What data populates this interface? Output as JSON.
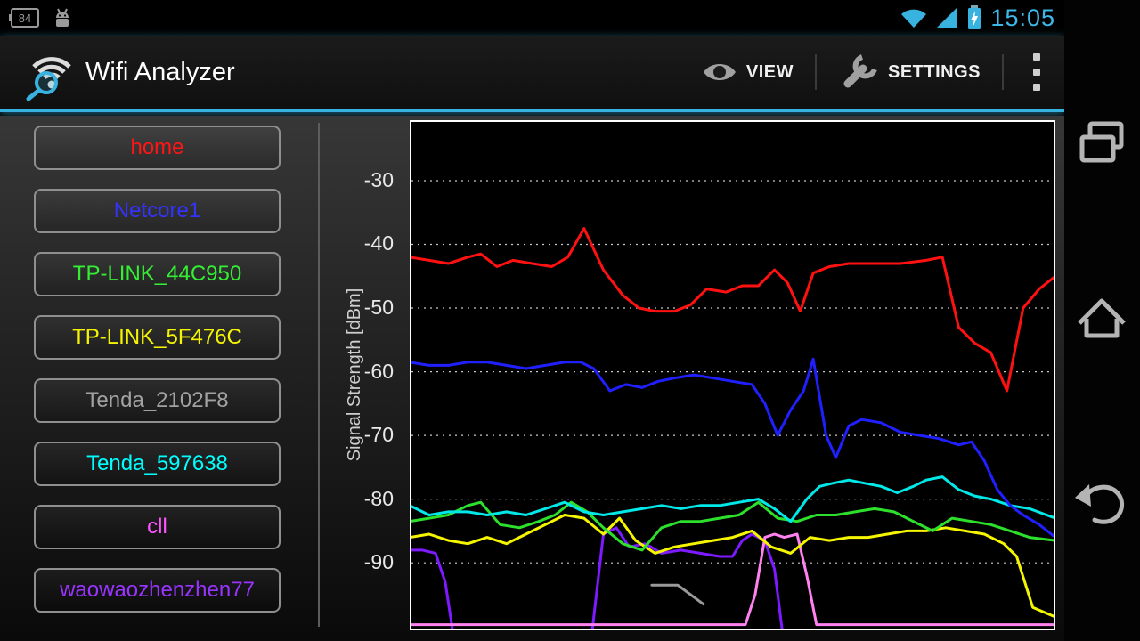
{
  "status_bar": {
    "battery_percent": "84",
    "time": "15:05",
    "icons": [
      "battery-84-icon",
      "android-debug-icon",
      "wifi-status-icon",
      "signal-strength-icon",
      "battery-charging-icon"
    ],
    "accent_color": "#38b3e0"
  },
  "action_bar": {
    "title": "Wifi Analyzer",
    "view_label": "VIEW",
    "settings_label": "SETTINGS",
    "underline_color": "#38b3e0"
  },
  "ssid_list": [
    {
      "label": "home",
      "color": "#ff1515"
    },
    {
      "label": "Netcore1",
      "color": "#3333ff"
    },
    {
      "label": "TP-LINK_44C950",
      "color": "#33ee33"
    },
    {
      "label": "TP-LINK_5F476C",
      "color": "#f5f500"
    },
    {
      "label": "Tenda_2102F8",
      "color": "#a2a2a2"
    },
    {
      "label": "Tenda_597638",
      "color": "#00ffff"
    },
    {
      "label": "cll",
      "color": "#ff55ff"
    },
    {
      "label": "waowaozhenzhen77",
      "color": "#9933ff"
    }
  ],
  "chart_data": {
    "type": "line",
    "title": "",
    "xlabel": "",
    "ylabel": "Signal Strength [dBm]",
    "ylim": [
      -100.6,
      -20.5
    ],
    "gridlines": [
      -30,
      -40,
      -50,
      -60,
      -70,
      -80,
      -90
    ],
    "grid_style": "dotted",
    "plot_background": "#000000",
    "legend_position": "left-list",
    "x_axis": "time (no labels shown)",
    "series": [
      {
        "name": "Tenda_2102F8",
        "color": "#9a9a9a",
        "points": [
          [
            0.375,
            -93.5
          ],
          [
            0.415,
            -93.5
          ],
          [
            0.455,
            -96.5
          ]
        ]
      },
      {
        "name": "waowaozhenzhen77",
        "color": "#7d1aff",
        "points": [
          [
            0,
            -88
          ],
          [
            0.02,
            -88
          ],
          [
            0.04,
            -88.5
          ],
          [
            0.055,
            -93
          ],
          [
            0.07,
            -103
          ],
          [
            0.28,
            -103
          ],
          [
            0.3,
            -85.5
          ],
          [
            0.32,
            -84.5
          ],
          [
            0.34,
            -87.5
          ],
          [
            0.365,
            -87
          ],
          [
            0.39,
            -88.5
          ],
          [
            0.42,
            -88
          ],
          [
            0.45,
            -88.5
          ],
          [
            0.48,
            -89
          ],
          [
            0.5,
            -89
          ],
          [
            0.515,
            -86.5
          ],
          [
            0.53,
            -85.5
          ],
          [
            0.55,
            -86.5
          ],
          [
            0.565,
            -91
          ],
          [
            0.58,
            -103
          ],
          [
            1,
            -103
          ]
        ]
      },
      {
        "name": "cll",
        "color": "#ff82f0",
        "points": [
          [
            0,
            -99.7
          ],
          [
            0.52,
            -99.7
          ],
          [
            0.535,
            -95
          ],
          [
            0.55,
            -86
          ],
          [
            0.565,
            -85.5
          ],
          [
            0.58,
            -86
          ],
          [
            0.6,
            -85.5
          ],
          [
            0.615,
            -92
          ],
          [
            0.63,
            -99.7
          ],
          [
            1,
            -99.7
          ]
        ]
      },
      {
        "name": "TP-LINK_5F476C",
        "color": "#f5f500",
        "points": [
          [
            0,
            -86
          ],
          [
            0.03,
            -85.5
          ],
          [
            0.06,
            -86.5
          ],
          [
            0.09,
            -87
          ],
          [
            0.12,
            -86
          ],
          [
            0.15,
            -87
          ],
          [
            0.18,
            -85.5
          ],
          [
            0.21,
            -84
          ],
          [
            0.24,
            -82.5
          ],
          [
            0.27,
            -83
          ],
          [
            0.3,
            -85.5
          ],
          [
            0.325,
            -83
          ],
          [
            0.35,
            -86.5
          ],
          [
            0.38,
            -88.5
          ],
          [
            0.41,
            -87.5
          ],
          [
            0.44,
            -87
          ],
          [
            0.47,
            -86.5
          ],
          [
            0.5,
            -86
          ],
          [
            0.53,
            -85
          ],
          [
            0.56,
            -87.5
          ],
          [
            0.59,
            -88.5
          ],
          [
            0.62,
            -86
          ],
          [
            0.65,
            -86.5
          ],
          [
            0.68,
            -86
          ],
          [
            0.71,
            -86
          ],
          [
            0.74,
            -85.5
          ],
          [
            0.77,
            -85
          ],
          [
            0.8,
            -85
          ],
          [
            0.83,
            -84.5
          ],
          [
            0.86,
            -85
          ],
          [
            0.89,
            -85.5
          ],
          [
            0.92,
            -87
          ],
          [
            0.94,
            -89
          ],
          [
            0.965,
            -97
          ],
          [
            1,
            -98.5
          ]
        ]
      },
      {
        "name": "TP-LINK_44C950",
        "color": "#2ce02c",
        "points": [
          [
            0,
            -83.5
          ],
          [
            0.03,
            -83
          ],
          [
            0.06,
            -82.5
          ],
          [
            0.09,
            -81
          ],
          [
            0.11,
            -80.5
          ],
          [
            0.14,
            -84
          ],
          [
            0.17,
            -84.5
          ],
          [
            0.2,
            -83.5
          ],
          [
            0.225,
            -82.5
          ],
          [
            0.25,
            -80.5
          ],
          [
            0.275,
            -82
          ],
          [
            0.3,
            -84.5
          ],
          [
            0.33,
            -87
          ],
          [
            0.36,
            -88
          ],
          [
            0.39,
            -84.5
          ],
          [
            0.42,
            -83.5
          ],
          [
            0.45,
            -83.5
          ],
          [
            0.48,
            -83
          ],
          [
            0.51,
            -82.5
          ],
          [
            0.54,
            -80.5
          ],
          [
            0.57,
            -83
          ],
          [
            0.6,
            -83.5
          ],
          [
            0.63,
            -82.5
          ],
          [
            0.66,
            -82.5
          ],
          [
            0.69,
            -82
          ],
          [
            0.72,
            -81.5
          ],
          [
            0.75,
            -82
          ],
          [
            0.78,
            -83.5
          ],
          [
            0.81,
            -85
          ],
          [
            0.84,
            -83
          ],
          [
            0.87,
            -83.5
          ],
          [
            0.9,
            -84
          ],
          [
            0.93,
            -85
          ],
          [
            0.96,
            -86
          ],
          [
            1,
            -86.5
          ]
        ]
      },
      {
        "name": "Tenda_597638",
        "color": "#00e8e8",
        "points": [
          [
            0,
            -81
          ],
          [
            0.03,
            -82.5
          ],
          [
            0.06,
            -82
          ],
          [
            0.09,
            -82
          ],
          [
            0.12,
            -82.5
          ],
          [
            0.15,
            -82
          ],
          [
            0.18,
            -82.5
          ],
          [
            0.21,
            -81.5
          ],
          [
            0.24,
            -80.5
          ],
          [
            0.27,
            -82
          ],
          [
            0.3,
            -82.5
          ],
          [
            0.33,
            -82
          ],
          [
            0.36,
            -81.5
          ],
          [
            0.39,
            -81
          ],
          [
            0.42,
            -81.5
          ],
          [
            0.45,
            -81
          ],
          [
            0.48,
            -81
          ],
          [
            0.51,
            -80.5
          ],
          [
            0.54,
            -80
          ],
          [
            0.565,
            -81.5
          ],
          [
            0.59,
            -83.5
          ],
          [
            0.615,
            -80
          ],
          [
            0.635,
            -78
          ],
          [
            0.655,
            -77.5
          ],
          [
            0.68,
            -77
          ],
          [
            0.705,
            -77.5
          ],
          [
            0.73,
            -78
          ],
          [
            0.755,
            -79
          ],
          [
            0.78,
            -78
          ],
          [
            0.8,
            -77
          ],
          [
            0.825,
            -76.5
          ],
          [
            0.85,
            -78.5
          ],
          [
            0.875,
            -79.5
          ],
          [
            0.9,
            -80
          ],
          [
            0.93,
            -81
          ],
          [
            0.96,
            -81.5
          ],
          [
            1,
            -83
          ]
        ]
      },
      {
        "name": "Netcore1",
        "color": "#2020ff",
        "points": [
          [
            0,
            -58.5
          ],
          [
            0.03,
            -59
          ],
          [
            0.06,
            -59
          ],
          [
            0.09,
            -58.5
          ],
          [
            0.12,
            -58.5
          ],
          [
            0.15,
            -59
          ],
          [
            0.18,
            -59.5
          ],
          [
            0.21,
            -59
          ],
          [
            0.24,
            -58.5
          ],
          [
            0.265,
            -58.5
          ],
          [
            0.285,
            -59.5
          ],
          [
            0.31,
            -63
          ],
          [
            0.335,
            -62
          ],
          [
            0.36,
            -62.5
          ],
          [
            0.385,
            -61.5
          ],
          [
            0.41,
            -61
          ],
          [
            0.44,
            -60.5
          ],
          [
            0.47,
            -61
          ],
          [
            0.5,
            -61.5
          ],
          [
            0.53,
            -62
          ],
          [
            0.55,
            -65
          ],
          [
            0.57,
            -70
          ],
          [
            0.59,
            -66
          ],
          [
            0.61,
            -63
          ],
          [
            0.625,
            -58
          ],
          [
            0.645,
            -70
          ],
          [
            0.66,
            -73.5
          ],
          [
            0.68,
            -68.5
          ],
          [
            0.7,
            -67.5
          ],
          [
            0.73,
            -68
          ],
          [
            0.76,
            -69.5
          ],
          [
            0.79,
            -70
          ],
          [
            0.82,
            -70.5
          ],
          [
            0.85,
            -71.5
          ],
          [
            0.87,
            -71
          ],
          [
            0.89,
            -74
          ],
          [
            0.91,
            -78.5
          ],
          [
            0.93,
            -81
          ],
          [
            0.95,
            -82.5
          ],
          [
            0.975,
            -84
          ],
          [
            1,
            -86
          ]
        ]
      },
      {
        "name": "home",
        "color": "#ff1111",
        "points": [
          [
            0,
            -42
          ],
          [
            0.03,
            -42.5
          ],
          [
            0.06,
            -43
          ],
          [
            0.09,
            -42
          ],
          [
            0.11,
            -41.5
          ],
          [
            0.135,
            -43.5
          ],
          [
            0.16,
            -42.5
          ],
          [
            0.19,
            -43
          ],
          [
            0.22,
            -43.5
          ],
          [
            0.245,
            -42
          ],
          [
            0.27,
            -37.5
          ],
          [
            0.3,
            -44
          ],
          [
            0.33,
            -48
          ],
          [
            0.355,
            -50
          ],
          [
            0.38,
            -50.5
          ],
          [
            0.41,
            -50.5
          ],
          [
            0.435,
            -49.5
          ],
          [
            0.46,
            -47
          ],
          [
            0.49,
            -47.5
          ],
          [
            0.515,
            -46.5
          ],
          [
            0.54,
            -46.5
          ],
          [
            0.565,
            -44
          ],
          [
            0.585,
            -46
          ],
          [
            0.605,
            -50.5
          ],
          [
            0.625,
            -44.5
          ],
          [
            0.65,
            -43.5
          ],
          [
            0.68,
            -43
          ],
          [
            0.72,
            -43
          ],
          [
            0.76,
            -43
          ],
          [
            0.8,
            -42.5
          ],
          [
            0.825,
            -42
          ],
          [
            0.85,
            -53
          ],
          [
            0.875,
            -55.5
          ],
          [
            0.9,
            -57
          ],
          [
            0.925,
            -63
          ],
          [
            0.95,
            -50
          ],
          [
            0.975,
            -47
          ],
          [
            1,
            -45
          ]
        ]
      }
    ]
  },
  "nav_bar": {
    "icons": [
      "recents-icon",
      "home-icon",
      "back-icon"
    ]
  }
}
